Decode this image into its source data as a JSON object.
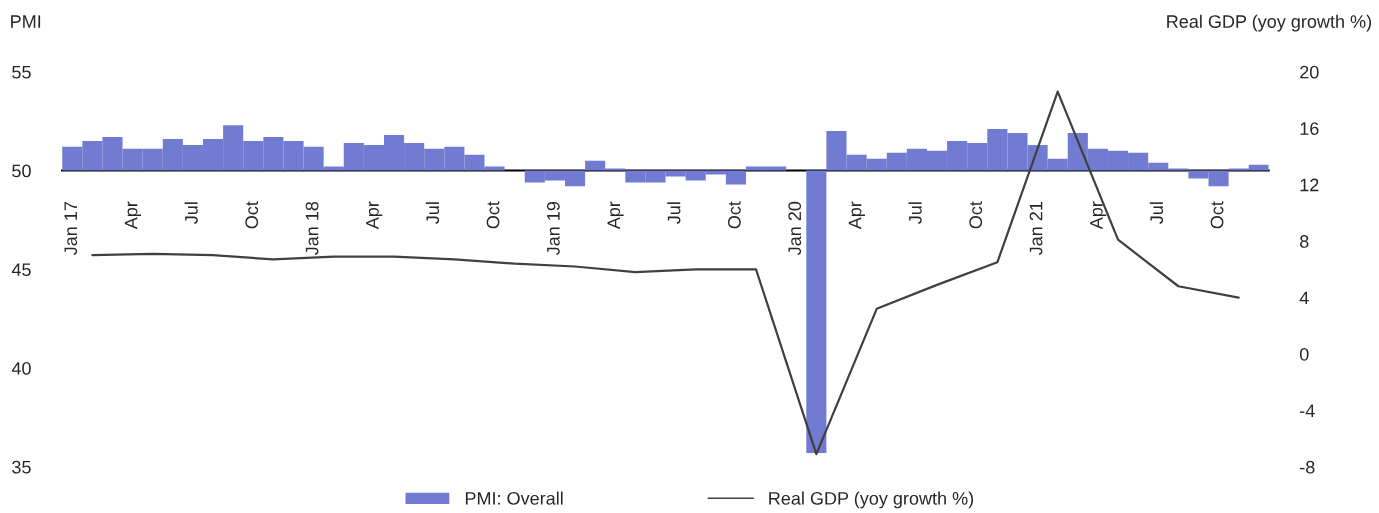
{
  "chart_data": {
    "type": "bar",
    "ylabel": "PMI",
    "y2label": "Real GDP (yoy growth %)",
    "x": [
      "2017-01",
      "2017-02",
      "2017-03",
      "2017-04",
      "2017-05",
      "2017-06",
      "2017-07",
      "2017-08",
      "2017-09",
      "2017-10",
      "2017-11",
      "2017-12",
      "2018-01",
      "2018-02",
      "2018-03",
      "2018-04",
      "2018-05",
      "2018-06",
      "2018-07",
      "2018-08",
      "2018-09",
      "2018-10",
      "2018-11",
      "2018-12",
      "2019-01",
      "2019-02",
      "2019-03",
      "2019-04",
      "2019-05",
      "2019-06",
      "2019-07",
      "2019-08",
      "2019-09",
      "2019-10",
      "2019-11",
      "2019-12",
      "2020-01",
      "2020-02",
      "2020-03",
      "2020-04",
      "2020-05",
      "2020-06",
      "2020-07",
      "2020-08",
      "2020-09",
      "2020-10",
      "2020-11",
      "2020-12",
      "2021-01",
      "2021-02",
      "2021-03",
      "2021-04",
      "2021-05",
      "2021-06",
      "2021-07",
      "2021-08",
      "2021-09",
      "2021-10",
      "2021-11",
      "2021-12"
    ],
    "series": [
      {
        "name": "PMI: Overall",
        "color": "#717bd1",
        "values": [
          1.2,
          1.5,
          1.7,
          1.1,
          1.1,
          1.6,
          1.3,
          1.6,
          2.3,
          1.5,
          1.7,
          1.5,
          1.2,
          0.2,
          1.4,
          1.3,
          1.8,
          1.4,
          1.1,
          1.2,
          0.8,
          0.2,
          null,
          -0.6,
          -0.5,
          -0.8,
          0.5,
          0.1,
          -0.6,
          -0.6,
          -0.3,
          -0.5,
          -0.2,
          -0.7,
          0.2,
          0.2,
          null,
          -14.3,
          2.0,
          0.8,
          0.6,
          0.9,
          1.1,
          1.0,
          1.5,
          1.4,
          2.1,
          1.9,
          1.3,
          0.6,
          1.9,
          1.1,
          1.0,
          0.9,
          0.4,
          0.1,
          -0.4,
          -0.8,
          0.1,
          0.3
        ],
        "base": [
          50,
          50,
          50,
          50,
          50,
          50,
          50,
          50,
          50,
          50,
          50,
          50,
          50,
          50,
          50,
          50,
          50,
          50,
          50,
          50,
          50,
          50,
          null,
          50,
          50,
          50,
          50,
          50,
          50,
          50,
          50,
          50,
          50,
          50,
          50,
          50,
          null,
          50,
          50,
          50,
          50,
          50,
          50,
          50,
          50,
          50,
          50,
          50,
          50,
          50,
          50,
          50,
          50,
          50,
          50,
          50,
          50,
          50,
          50,
          50
        ]
      },
      {
        "name": "Real GDP (yoy growth %)",
        "type": "line",
        "axis": "y2",
        "color": "#404040",
        "x": [
          "2017-02",
          "2017-05",
          "2017-08",
          "2017-11",
          "2018-02",
          "2018-05",
          "2018-08",
          "2018-11",
          "2019-02",
          "2019-05",
          "2019-08",
          "2019-11",
          "2020-02",
          "2020-05",
          "2020-08",
          "2020-11",
          "2021-02",
          "2021-05",
          "2021-08",
          "2021-11"
        ],
        "values": [
          7.0,
          7.1,
          7.0,
          6.7,
          6.9,
          6.9,
          6.7,
          6.4,
          6.2,
          5.8,
          6.0,
          6.0,
          -7.1,
          3.2,
          4.9,
          6.5,
          18.6,
          8.1,
          4.8,
          4.0
        ]
      }
    ],
    "xlim": [
      "2016-12-16",
      "2021-12-16"
    ],
    "xticks": [
      {
        "value": "2017-01",
        "label": "Jan 17"
      },
      {
        "value": "2017-04",
        "label": "Apr"
      },
      {
        "value": "2017-07",
        "label": "Jul"
      },
      {
        "value": "2017-10",
        "label": "Oct"
      },
      {
        "value": "2018-01",
        "label": "Jan 18"
      },
      {
        "value": "2018-04",
        "label": "Apr"
      },
      {
        "value": "2018-07",
        "label": "Jul"
      },
      {
        "value": "2018-10",
        "label": "Oct"
      },
      {
        "value": "2019-01",
        "label": "Jan 19"
      },
      {
        "value": "2019-04",
        "label": "Apr"
      },
      {
        "value": "2019-07",
        "label": "Jul"
      },
      {
        "value": "2019-10",
        "label": "Oct"
      },
      {
        "value": "2020-01",
        "label": "Jan 20"
      },
      {
        "value": "2020-04",
        "label": "Apr"
      },
      {
        "value": "2020-07",
        "label": "Jul"
      },
      {
        "value": "2020-10",
        "label": "Oct"
      },
      {
        "value": "2021-01",
        "label": "Jan 21"
      },
      {
        "value": "2021-04",
        "label": "Apr"
      },
      {
        "value": "2021-07",
        "label": "Jul"
      },
      {
        "value": "2021-10",
        "label": "Oct"
      }
    ],
    "ylim": [
      35,
      55
    ],
    "yticks": [
      35,
      40,
      45,
      50,
      55
    ],
    "y2lim": [
      -8,
      20
    ],
    "y2ticks": [
      -8,
      -4,
      0,
      4,
      8,
      12,
      16,
      20
    ],
    "grid": false,
    "legend": "bottom"
  }
}
